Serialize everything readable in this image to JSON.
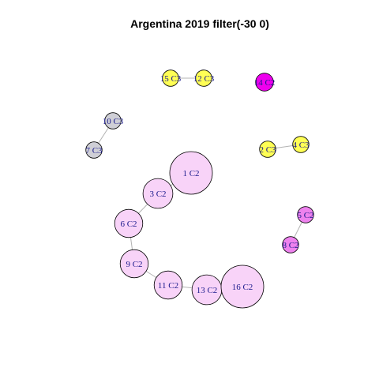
{
  "title": "Argentina 2019 filter(-30 0)",
  "colors": {
    "C2_light": "#f8d3f8",
    "C2_pink": "#ee82ee",
    "C2_magenta": "#ee00ee",
    "C3_yellow": "#ffff55",
    "C3_gray": "#cfcfd6"
  },
  "nodes": [
    {
      "id": "1",
      "label": "1 C2",
      "color": "C2_light",
      "weight": 1.0
    },
    {
      "id": "3",
      "label": "3 C2",
      "color": "C2_light",
      "weight": 0.7
    },
    {
      "id": "6",
      "label": "6 C2",
      "color": "C2_light",
      "weight": 0.66
    },
    {
      "id": "9",
      "label": "9 C2",
      "color": "C2_light",
      "weight": 0.66
    },
    {
      "id": "11",
      "label": "11 C2",
      "color": "C2_light",
      "weight": 0.66
    },
    {
      "id": "13",
      "label": "13 C2",
      "color": "C2_light",
      "weight": 0.7
    },
    {
      "id": "16",
      "label": "16 C2",
      "color": "C2_light",
      "weight": 1.0
    },
    {
      "id": "5",
      "label": "5 C2",
      "color": "C2_pink",
      "weight": 0.38
    },
    {
      "id": "8",
      "label": "8 C2",
      "color": "C2_pink",
      "weight": 0.38
    },
    {
      "id": "14",
      "label": "14 C2",
      "color": "C2_magenta",
      "weight": 0.42
    },
    {
      "id": "15",
      "label": "15 C3",
      "color": "C3_yellow",
      "weight": 0.38
    },
    {
      "id": "12",
      "label": "12 C3",
      "color": "C3_yellow",
      "weight": 0.38
    },
    {
      "id": "2",
      "label": "2 C3",
      "color": "C3_yellow",
      "weight": 0.38
    },
    {
      "id": "4",
      "label": "4 C3",
      "color": "C3_yellow",
      "weight": 0.38
    },
    {
      "id": "10",
      "label": "10 C3",
      "color": "C3_gray",
      "weight": 0.38
    },
    {
      "id": "7",
      "label": "7 C3",
      "color": "C3_gray",
      "weight": 0.38
    }
  ],
  "edges": [
    [
      "1",
      "3"
    ],
    [
      "3",
      "6"
    ],
    [
      "6",
      "9"
    ],
    [
      "9",
      "11"
    ],
    [
      "11",
      "13"
    ],
    [
      "13",
      "16"
    ],
    [
      "5",
      "8"
    ],
    [
      "15",
      "12"
    ],
    [
      "2",
      "4"
    ],
    [
      "10",
      "7"
    ]
  ]
}
